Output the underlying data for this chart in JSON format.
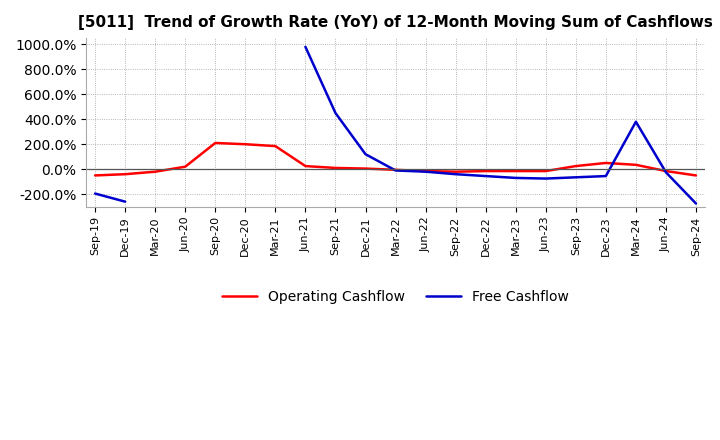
{
  "title": "[5011]  Trend of Growth Rate (YoY) of 12-Month Moving Sum of Cashflows",
  "x_labels": [
    "Sep-19",
    "Dec-19",
    "Mar-20",
    "Jun-20",
    "Sep-20",
    "Dec-20",
    "Mar-21",
    "Jun-21",
    "Sep-21",
    "Dec-21",
    "Mar-22",
    "Jun-22",
    "Sep-22",
    "Dec-22",
    "Mar-23",
    "Jun-23",
    "Sep-23",
    "Dec-23",
    "Mar-24",
    "Jun-24",
    "Sep-24"
  ],
  "operating_cashflow": [
    -50,
    -40,
    -20,
    20,
    210,
    200,
    185,
    25,
    10,
    5,
    -5,
    -15,
    -20,
    -15,
    -15,
    -15,
    25,
    50,
    35,
    -15,
    -50
  ],
  "free_cashflow": [
    -195,
    -260,
    null,
    null,
    null,
    null,
    null,
    980,
    450,
    120,
    -10,
    -20,
    -40,
    -55,
    -70,
    -75,
    -65,
    -55,
    380,
    -25,
    -275
  ],
  "ylim": [
    -300,
    1050
  ],
  "yticks": [
    -200,
    0,
    200,
    400,
    600,
    800,
    1000
  ],
  "operating_color": "#ff0000",
  "free_color": "#0000cc",
  "background_color": "#ffffff",
  "grid_color": "#888888",
  "legend_labels": [
    "Operating Cashflow",
    "Free Cashflow"
  ]
}
